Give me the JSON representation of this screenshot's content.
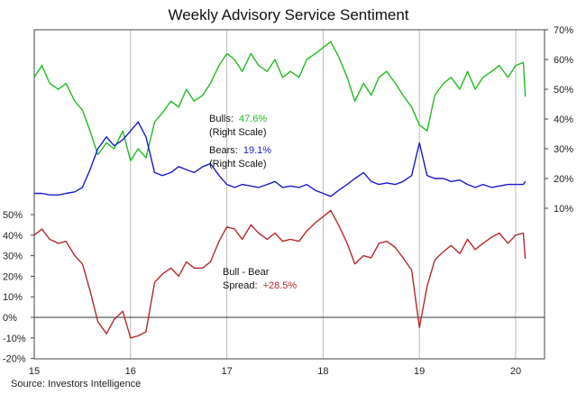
{
  "chart_data": {
    "type": "line",
    "title": "Weekly Advisory Service Sentiment",
    "source": "Source: Investors Intelligence",
    "x_ticks": [
      "15",
      "16",
      "17",
      "18",
      "19",
      "20"
    ],
    "xlim": [
      2015.0,
      2020.3
    ],
    "right_axis": {
      "ticks": [
        "10%",
        "20%",
        "30%",
        "40%",
        "50%",
        "60%",
        "70%"
      ],
      "values": [
        10,
        20,
        30,
        40,
        50,
        60,
        70
      ]
    },
    "left_axis": {
      "ticks": [
        "50%",
        "40%",
        "30%",
        "20%",
        "10%",
        "0%",
        "-10%",
        "-20%"
      ],
      "values": [
        50,
        40,
        30,
        20,
        10,
        0,
        -10,
        -20
      ]
    },
    "annotations": {
      "bulls_name": "Bulls:",
      "bulls_value": "47.6%",
      "bulls_scale": "(Right Scale)",
      "bears_name": "Bears:",
      "bears_value": "19.1%",
      "bears_scale": "(Right Scale)",
      "spread_name": "Bull - Bear",
      "spread_label": "Spread:",
      "spread_value": "+28.5%"
    },
    "colors": {
      "bulls": "#22bb22",
      "bears": "#1a1acc",
      "spread": "#b52a2a",
      "grid": "#bbbbbb",
      "frame": "#444444"
    },
    "series": [
      {
        "name": "Bulls",
        "axis": "right",
        "x": [
          2015.0,
          2015.08,
          2015.16,
          2015.25,
          2015.33,
          2015.42,
          2015.5,
          2015.58,
          2015.66,
          2015.75,
          2015.83,
          2015.92,
          2016.0,
          2016.08,
          2016.16,
          2016.25,
          2016.33,
          2016.42,
          2016.5,
          2016.58,
          2016.66,
          2016.75,
          2016.83,
          2016.92,
          2017.0,
          2017.08,
          2017.16,
          2017.25,
          2017.33,
          2017.42,
          2017.5,
          2017.58,
          2017.66,
          2017.75,
          2017.83,
          2017.92,
          2018.0,
          2018.08,
          2018.16,
          2018.25,
          2018.33,
          2018.42,
          2018.5,
          2018.58,
          2018.66,
          2018.75,
          2018.83,
          2018.92,
          2019.0,
          2019.08,
          2019.16,
          2019.25,
          2019.33,
          2019.42,
          2019.5,
          2019.58,
          2019.66,
          2019.75,
          2019.83,
          2019.92,
          2020.0,
          2020.08,
          2020.1
        ],
        "values": [
          54,
          58,
          52,
          50,
          52,
          46,
          43,
          36,
          28,
          32,
          30,
          36,
          26,
          30,
          27,
          39,
          42,
          46,
          44,
          50,
          46,
          48,
          52,
          58,
          62,
          60,
          56,
          62,
          58,
          56,
          60,
          54,
          56,
          54,
          60,
          62,
          64,
          66,
          61,
          54,
          46,
          52,
          48,
          54,
          56,
          52,
          48,
          44,
          38,
          36,
          48,
          52,
          54,
          50,
          56,
          50,
          54,
          56,
          58,
          54,
          58,
          59,
          47.6
        ]
      },
      {
        "name": "Bears",
        "axis": "right",
        "x": [
          2015.0,
          2015.08,
          2015.16,
          2015.25,
          2015.33,
          2015.42,
          2015.5,
          2015.58,
          2015.66,
          2015.75,
          2015.83,
          2015.92,
          2016.0,
          2016.08,
          2016.16,
          2016.25,
          2016.33,
          2016.42,
          2016.5,
          2016.58,
          2016.66,
          2016.75,
          2016.83,
          2016.92,
          2017.0,
          2017.08,
          2017.16,
          2017.25,
          2017.33,
          2017.42,
          2017.5,
          2017.58,
          2017.66,
          2017.75,
          2017.83,
          2017.92,
          2018.0,
          2018.08,
          2018.16,
          2018.25,
          2018.33,
          2018.42,
          2018.5,
          2018.58,
          2018.66,
          2018.75,
          2018.83,
          2018.92,
          2019.0,
          2019.08,
          2019.16,
          2019.25,
          2019.33,
          2019.42,
          2019.5,
          2019.58,
          2019.66,
          2019.75,
          2019.83,
          2019.92,
          2020.0,
          2020.08,
          2020.1
        ],
        "values": [
          15,
          15,
          14.5,
          14.5,
          15,
          15.5,
          17,
          23,
          30,
          34,
          31,
          33,
          36,
          39,
          34,
          22,
          21,
          22,
          24,
          23,
          22,
          24,
          25,
          21,
          18,
          17,
          18,
          17.5,
          17,
          18,
          19,
          17,
          17.5,
          17,
          18,
          16,
          15,
          14,
          16,
          18,
          20,
          22,
          19,
          18,
          18.5,
          18,
          19,
          21,
          32,
          21,
          20,
          20,
          19,
          19.5,
          18,
          17,
          18,
          17,
          17.5,
          18,
          18,
          18,
          19.1
        ]
      },
      {
        "name": "Bull - Bear",
        "axis": "left",
        "x": [
          2015.0,
          2015.08,
          2015.16,
          2015.25,
          2015.33,
          2015.42,
          2015.5,
          2015.58,
          2015.66,
          2015.75,
          2015.83,
          2015.92,
          2016.0,
          2016.08,
          2016.16,
          2016.25,
          2016.33,
          2016.42,
          2016.5,
          2016.58,
          2016.66,
          2016.75,
          2016.83,
          2016.92,
          2017.0,
          2017.08,
          2017.16,
          2017.25,
          2017.33,
          2017.42,
          2017.5,
          2017.58,
          2017.66,
          2017.75,
          2017.83,
          2017.92,
          2018.0,
          2018.08,
          2018.16,
          2018.25,
          2018.33,
          2018.42,
          2018.5,
          2018.58,
          2018.66,
          2018.75,
          2018.83,
          2018.92,
          2019.0,
          2019.08,
          2019.16,
          2019.25,
          2019.33,
          2019.42,
          2019.5,
          2019.58,
          2019.66,
          2019.75,
          2019.83,
          2019.92,
          2020.0,
          2020.08,
          2020.1
        ],
        "values": [
          40,
          43,
          38,
          36,
          37,
          30,
          26,
          13,
          -2,
          -8,
          -1,
          3,
          -10,
          -9,
          -7,
          17,
          21,
          24,
          20,
          27,
          24,
          24,
          27,
          37,
          44,
          43,
          38,
          45,
          41,
          38,
          41,
          37,
          38,
          37,
          42,
          46,
          49,
          52,
          45,
          36,
          26,
          30,
          29,
          36,
          37,
          34,
          29,
          23,
          -5,
          15,
          28,
          32,
          35,
          31,
          38,
          33,
          36,
          39,
          41,
          36,
          40,
          41,
          28.5
        ]
      }
    ]
  }
}
